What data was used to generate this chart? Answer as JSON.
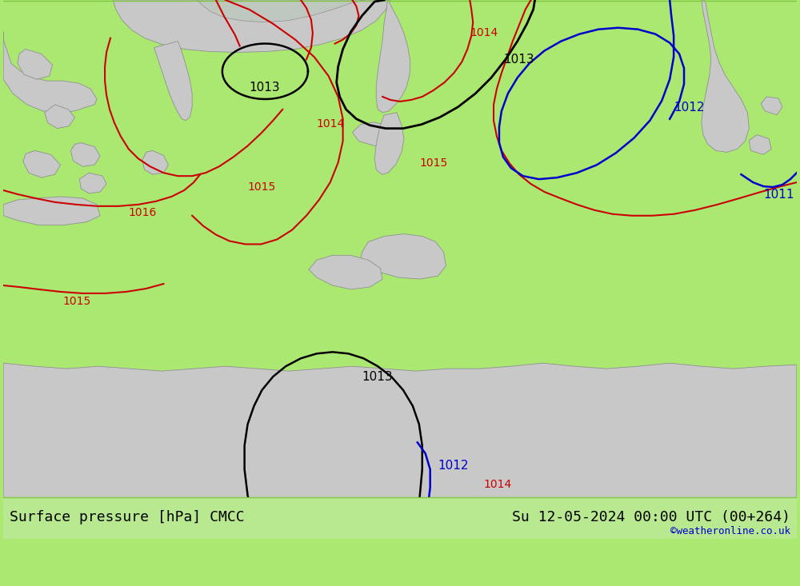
{
  "title_left": "Surface pressure [hPa] CMCC",
  "title_right": "Su 12-05-2024 00:00 UTC (00+264)",
  "credit": "©weatheronline.co.uk",
  "bg_color": "#aae872",
  "land_color": "#d3d3d3",
  "sea_color": "#b8d4b8",
  "bottom_bar_color": "#b8e890",
  "font_size_label": 13,
  "font_size_credit": 10
}
